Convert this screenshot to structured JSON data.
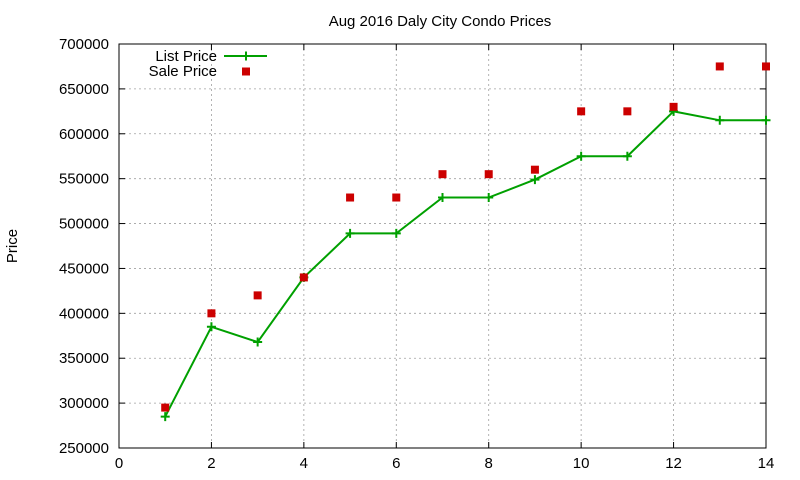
{
  "chart_data": {
    "type": "line",
    "title": "Aug 2016 Daly City Condo Prices",
    "xlabel": "",
    "ylabel": "Price",
    "xlim": [
      0,
      14
    ],
    "ylim": [
      250000,
      700000
    ],
    "xticks": [
      0,
      2,
      4,
      6,
      8,
      10,
      12,
      14
    ],
    "yticks": [
      250000,
      300000,
      350000,
      400000,
      450000,
      500000,
      550000,
      600000,
      650000,
      700000
    ],
    "grid": true,
    "legend_position": "top-left",
    "series": [
      {
        "name": "List Price",
        "style": "line-with-plus-markers",
        "color": "#00a000",
        "x": [
          1,
          2,
          3,
          4,
          5,
          6,
          7,
          8,
          9,
          10,
          11,
          12,
          13,
          14
        ],
        "values": [
          285000,
          385000,
          368000,
          440000,
          489000,
          489000,
          529000,
          529000,
          549000,
          575000,
          575000,
          625000,
          615000,
          615000
        ]
      },
      {
        "name": "Sale Price",
        "style": "square-markers",
        "color": "#cc0000",
        "x": [
          1,
          2,
          3,
          4,
          5,
          6,
          7,
          8,
          9,
          10,
          11,
          12,
          13,
          14
        ],
        "values": [
          295000,
          400000,
          420000,
          440000,
          529000,
          529000,
          555000,
          555000,
          560000,
          625000,
          625000,
          630000,
          675000,
          675000
        ]
      }
    ]
  }
}
